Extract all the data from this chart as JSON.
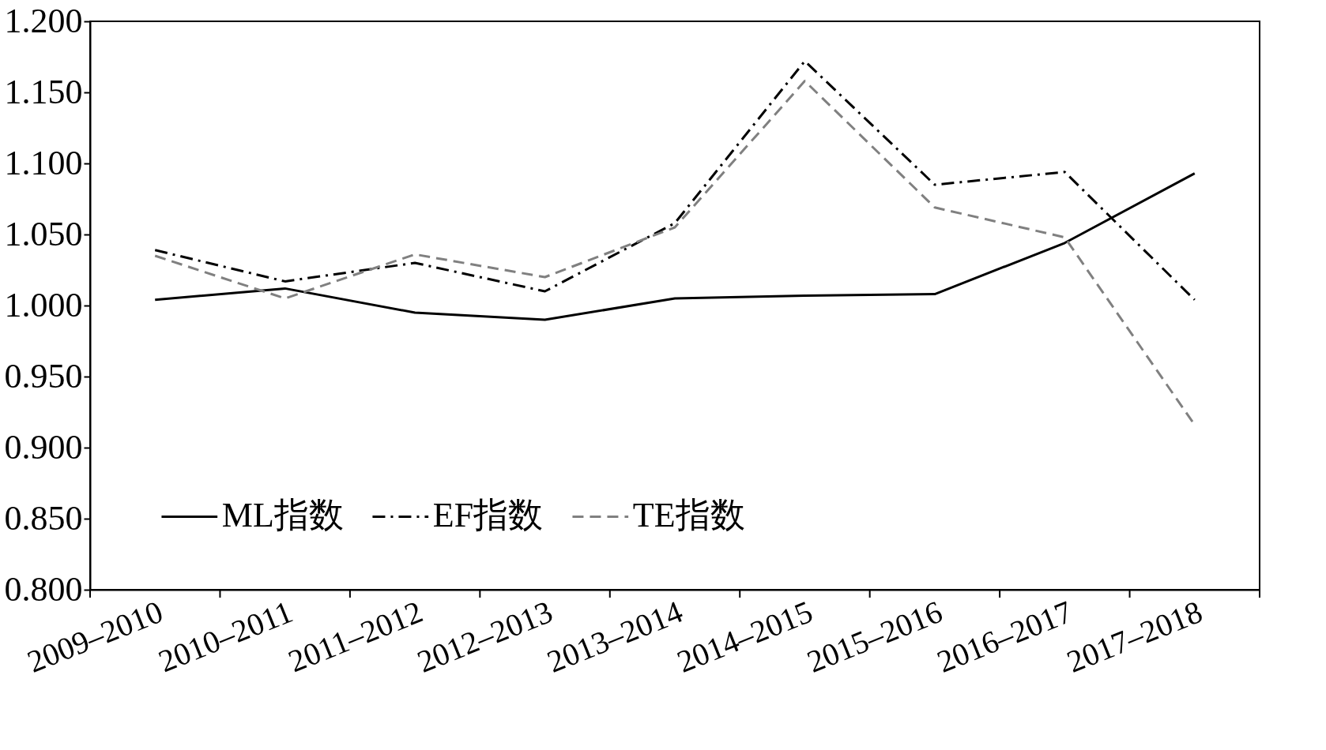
{
  "chart_data": {
    "type": "line",
    "categories": [
      "2009–2010",
      "2010–2011",
      "2011–2012",
      "2012–2013",
      "2013–2014",
      "2014–2015",
      "2015–2016",
      "2016–2017",
      "2017–2018"
    ],
    "series": [
      {
        "name": "ML指数",
        "color": "#000000",
        "line_style": "solid",
        "values": [
          1.004,
          1.012,
          0.995,
          0.99,
          1.005,
          1.007,
          1.008,
          1.044,
          1.093
        ]
      },
      {
        "name": "EF指数",
        "color": "#000000",
        "line_style": "dashdot",
        "values": [
          1.039,
          1.017,
          1.03,
          1.01,
          1.058,
          1.172,
          1.085,
          1.094,
          1.004
        ]
      },
      {
        "name": "TE指数",
        "color": "#808080",
        "line_style": "dashed",
        "values": [
          1.035,
          1.005,
          1.036,
          1.02,
          1.055,
          1.158,
          1.069,
          1.048,
          0.916
        ]
      }
    ],
    "ylim": [
      0.8,
      1.2
    ],
    "yticks": [
      {
        "value": 0.8,
        "label": "0.800"
      },
      {
        "value": 0.85,
        "label": "0.850"
      },
      {
        "value": 0.9,
        "label": "0.900"
      },
      {
        "value": 0.95,
        "label": "0.950"
      },
      {
        "value": 1.0,
        "label": "1.000"
      },
      {
        "value": 1.05,
        "label": "1.050"
      },
      {
        "value": 1.1,
        "label": "1.100"
      },
      {
        "value": 1.15,
        "label": "1.150"
      },
      {
        "value": 1.2,
        "label": "1.200"
      }
    ],
    "grid": false,
    "legend": "bottom",
    "marker": "none"
  }
}
